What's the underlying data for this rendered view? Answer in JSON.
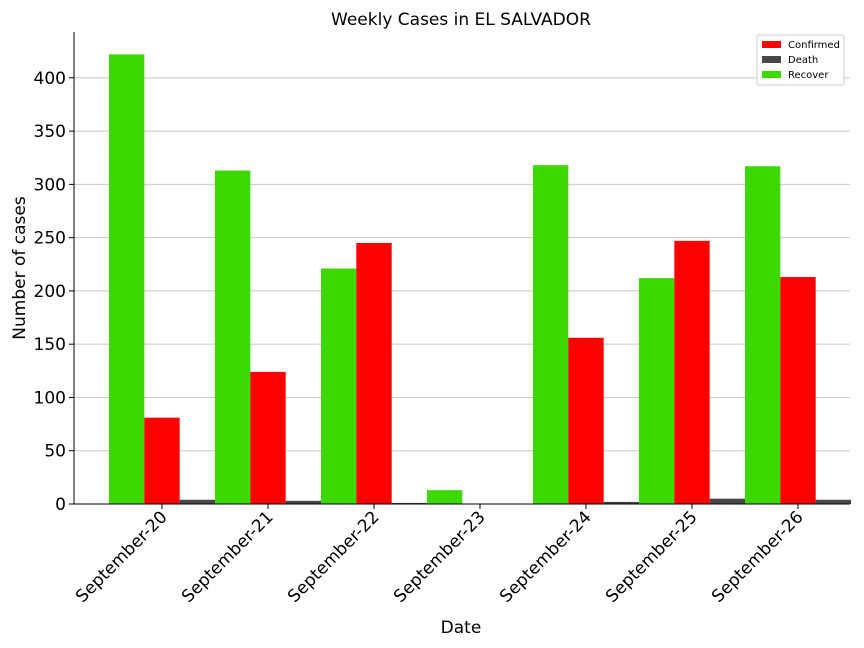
{
  "chart_data": {
    "type": "bar",
    "title": "Weekly Cases in EL SALVADOR",
    "xlabel": "Date",
    "ylabel": "Number of cases",
    "ylim": [
      0,
      443
    ],
    "yticks": [
      0,
      50,
      100,
      150,
      200,
      250,
      300,
      350,
      400
    ],
    "grid": "horizontal",
    "legend_position": "top-right",
    "categories": [
      "September-20",
      "September-21",
      "September-22",
      "September-23",
      "September-24",
      "September-25",
      "September-26"
    ],
    "series": [
      {
        "name": "Recover",
        "color": "#3dd800",
        "values": [
          422,
          313,
          221,
          13,
          318,
          212,
          317
        ]
      },
      {
        "name": "Confirmed",
        "color": "#ff0000",
        "values": [
          81,
          124,
          245,
          0,
          156,
          247,
          213
        ]
      },
      {
        "name": "Death",
        "color": "#474747",
        "values": [
          4,
          3,
          1,
          0,
          2,
          5,
          4
        ]
      }
    ],
    "legend_order": [
      "Confirmed",
      "Death",
      "Recover"
    ]
  }
}
